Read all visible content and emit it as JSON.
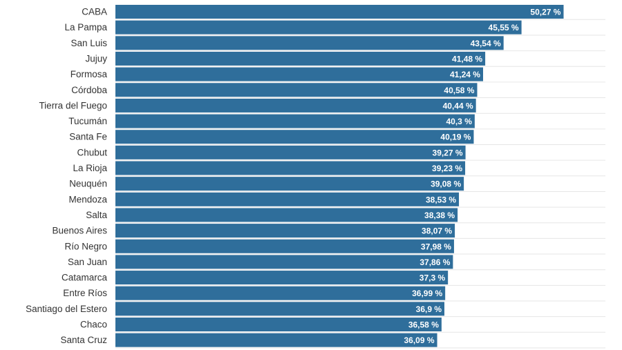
{
  "colors": {
    "bar": "#2f6e9b",
    "grid": "#e6e6e6",
    "label": "#333333",
    "value_text": "#ffffff"
  },
  "chart_data": {
    "type": "bar",
    "orientation": "horizontal",
    "title": "",
    "xlabel": "",
    "ylabel": "",
    "grid": true,
    "value_suffix": " %",
    "decimal_separator": ",",
    "categories": [
      "CABA",
      "La Pampa",
      "San Luis",
      "Jujuy",
      "Formosa",
      "Córdoba",
      "Tierra del Fuego",
      "Tucumán",
      "Santa Fe",
      "Chubut",
      "La Rioja",
      "Neuquén",
      "Mendoza",
      "Salta",
      "Buenos Aires",
      "Río Negro",
      "San Juan",
      "Catamarca",
      "Entre Ríos",
      "Santiago del Estero",
      "Chaco",
      "Santa Cruz"
    ],
    "values": [
      50.27,
      45.55,
      43.54,
      41.48,
      41.24,
      40.58,
      40.44,
      40.3,
      40.19,
      39.27,
      39.23,
      39.08,
      38.53,
      38.38,
      38.07,
      37.98,
      37.86,
      37.3,
      36.99,
      36.9,
      36.58,
      36.09
    ]
  }
}
